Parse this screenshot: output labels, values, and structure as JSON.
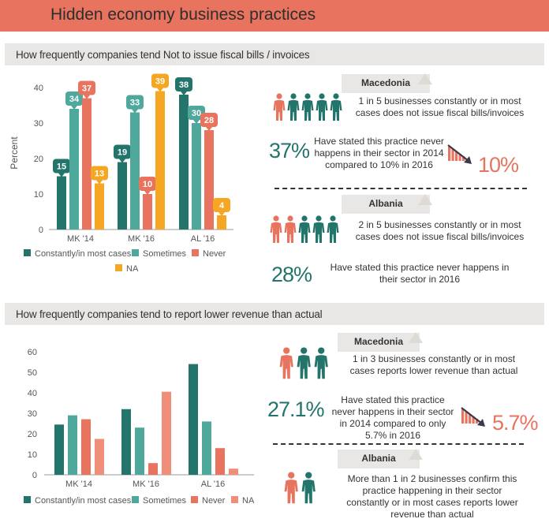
{
  "title": "Hidden economy business practices",
  "section1": {
    "title": "How frequently companies tend Not to issue fiscal bills / invoices",
    "macedonia": {
      "country": "Macedonia",
      "ratio_text": "1 in 5 businesses constantly or in most cases does not issue fiscal bills/invoices",
      "highlight_count": 1,
      "total_count": 5,
      "pct_2014": "37%",
      "statement": "Have stated this practice never happens in their sector in 2014 compared to 10% in 2016",
      "pct_2016": "10%"
    },
    "albania": {
      "country": "Albania",
      "ratio_text": "2 in 5 businesses constantly or in most cases does not issue fiscal bills/invoices",
      "highlight_count": 2,
      "total_count": 5,
      "pct": "28%",
      "statement": "Have stated this practice never happens in their sector in 2016"
    }
  },
  "section2": {
    "title": "How frequently companies tend to report lower revenue than actual",
    "macedonia": {
      "country": "Macedonia",
      "ratio_text": "1 in 3 businesses constantly or in most cases reports lower revenue than actual",
      "highlight_count": 1,
      "total_count": 3,
      "pct_2014": "27.1%",
      "statement": "Have stated this practice never happens in their sector in 2014 compared to only 5.7% in 2016",
      "pct_2016": "5.7%"
    },
    "albania": {
      "country": "Albania",
      "ratio_text": "More than 1 in 2 businesses confirm this practice happening in their sector constantly or in most cases reports lower revenue than actual",
      "highlight_count": 1,
      "total_count": 2
    }
  },
  "colors": {
    "dark_teal": "#23746b",
    "light_teal": "#4ea89c",
    "red": "#e8735e",
    "orange": "#f5a623",
    "salmon": "#f08f79",
    "title_bar": "#e8735e"
  },
  "chart_data": [
    {
      "type": "bar",
      "categories": [
        "MK '14",
        "MK '16",
        "AL '16"
      ],
      "series": [
        {
          "name": "Constantly/in most cases",
          "values": [
            15,
            19,
            38
          ]
        },
        {
          "name": "Sometimes",
          "values": [
            34,
            33,
            30
          ]
        },
        {
          "name": "Never",
          "values": [
            37,
            10,
            28
          ]
        },
        {
          "name": "NA",
          "values": [
            13,
            39,
            4
          ]
        }
      ],
      "data_labels": true,
      "ylabel": "Percent",
      "ylim": [
        0,
        40
      ],
      "yticks": [
        0,
        10,
        20,
        30,
        40
      ],
      "legend": "bottom"
    },
    {
      "type": "bar",
      "categories": [
        "MK '14",
        "MK '16",
        "AL '16"
      ],
      "series": [
        {
          "name": "Constantly/in most cases",
          "values": [
            24.5,
            32,
            54
          ]
        },
        {
          "name": "Sometimes",
          "values": [
            29,
            23,
            26
          ]
        },
        {
          "name": "Never",
          "values": [
            27.1,
            5.7,
            13
          ]
        },
        {
          "name": "NA",
          "values": [
            17.5,
            40.5,
            3
          ]
        }
      ],
      "data_labels": false,
      "ylim": [
        0,
        60
      ],
      "yticks": [
        0,
        10,
        20,
        30,
        40,
        50,
        60
      ],
      "legend": "bottom"
    }
  ]
}
